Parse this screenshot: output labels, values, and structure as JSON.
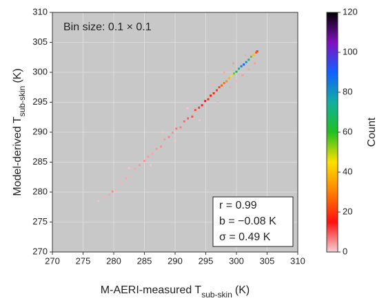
{
  "chart_data": {
    "type": "hist2d",
    "annotation": "Bin size: 0.1 × 0.1",
    "stats": [
      "r = 0.99",
      "b = −0.08 K",
      "σ = 0.49 K"
    ],
    "xlabel": {
      "main": "M-AERI-measured T",
      "sub": "sub-skin",
      "unit": "(K)"
    },
    "ylabel": {
      "main": "Model-derived T",
      "sub": "sub-skin",
      "unit": "(K)"
    },
    "xlim": [
      270,
      310
    ],
    "ylim": [
      270,
      310
    ],
    "xticks": [
      270,
      275,
      280,
      285,
      290,
      295,
      300,
      305,
      310
    ],
    "yticks": [
      270,
      275,
      280,
      285,
      290,
      295,
      300,
      305,
      310
    ],
    "grid": true,
    "colorbar": {
      "label": "Count",
      "clim": [
        0,
        120
      ],
      "ticks": [
        0,
        20,
        40,
        60,
        80,
        100,
        120
      ],
      "colormap": [
        "#f2d0d4",
        "#ff1010",
        "#ff8000",
        "#ffe000",
        "#20c020",
        "#10b0a0",
        "#1060ff",
        "#8010c0",
        "#000000"
      ]
    },
    "cells": {
      "x": [
        279.3,
        279.8,
        280.5,
        281.2,
        282,
        282.8,
        283.5,
        284.2,
        285,
        285.6,
        286.3,
        287,
        287.7,
        288.3,
        289,
        289.6,
        290.2,
        290.9,
        291.5,
        292.1,
        292.8,
        293.3,
        293.9,
        294.4,
        294.9,
        295.4,
        295.8,
        296.3,
        296.8,
        297.2,
        297.6,
        298,
        298.4,
        298.8,
        299.2,
        299.6,
        300,
        300.4,
        300.8,
        301.2,
        301.6,
        302,
        302.4,
        302.8,
        303.2,
        303.4,
        282.5,
        286,
        288,
        290,
        292,
        294,
        296,
        297,
        299,
        298,
        300,
        301,
        302,
        299.5,
        303,
        301.5,
        277.5,
        278.5
      ],
      "y": [
        279.6,
        280.1,
        280.2,
        281.6,
        282.3,
        282.6,
        283.9,
        284.5,
        285.2,
        285.9,
        286.4,
        287.2,
        287.6,
        288.8,
        289.2,
        289.9,
        290.6,
        290.8,
        291.8,
        292.3,
        292.6,
        293.7,
        294.1,
        294.5,
        295.2,
        295.5,
        296.1,
        296.5,
        297,
        297.5,
        297.8,
        298.2,
        298.5,
        299,
        299.4,
        299.8,
        300.1,
        300.6,
        301,
        301.3,
        301.7,
        302.1,
        302.6,
        302.9,
        303.3,
        303.5,
        284,
        284.5,
        290,
        288.5,
        294,
        292,
        298,
        295,
        297.5,
        300,
        298.5,
        299.5,
        300.5,
        301.5,
        301.5,
        302.8,
        278.5,
        279.2
      ],
      "counts": [
        3,
        5,
        2,
        2,
        3,
        2,
        3,
        4,
        5,
        4,
        3,
        4,
        5,
        4,
        6,
        5,
        7,
        6,
        8,
        9,
        10,
        11,
        12,
        14,
        15,
        18,
        16,
        18,
        20,
        22,
        25,
        28,
        32,
        38,
        45,
        55,
        65,
        75,
        85,
        90,
        80,
        70,
        55,
        40,
        25,
        12,
        1,
        1,
        1,
        1,
        1,
        1,
        2,
        2,
        3,
        3,
        2,
        4,
        3,
        4,
        4,
        3,
        1,
        2
      ]
    }
  }
}
